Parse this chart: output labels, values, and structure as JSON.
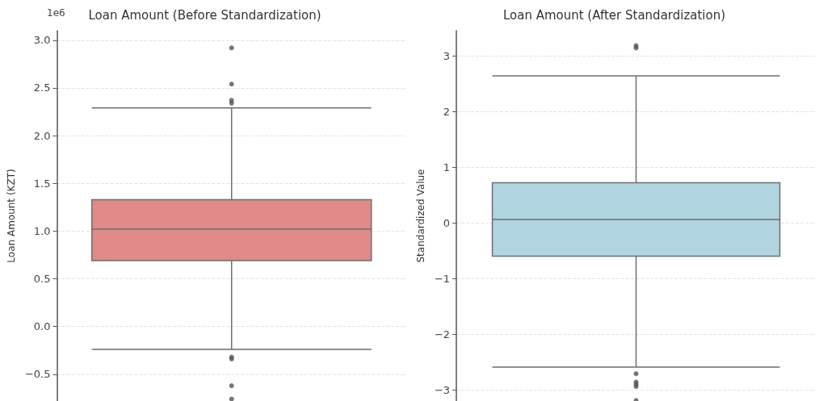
{
  "chart_data": [
    {
      "type": "box",
      "title": "Loan Amount (Before Standardization)",
      "ylabel": "Loan Amount (KZT)",
      "annotations": [
        "1e6"
      ],
      "categories": [
        null
      ],
      "color": "#e08a8a",
      "boxes": [
        {
          "low": -0.24,
          "q1": 0.69,
          "median": 1.02,
          "q3": 1.33,
          "high": 2.29,
          "outliers": [
            2.92,
            2.54,
            2.37,
            2.34,
            -0.32,
            -0.34,
            -0.62,
            -0.76
          ]
        }
      ],
      "ylim": [
        -0.78,
        3.1
      ],
      "yticks": [
        {
          "value": -0.5,
          "label": "−0.5"
        },
        {
          "value": 0,
          "label": "0.0"
        },
        {
          "value": 0.5,
          "label": "0.5"
        },
        {
          "value": 1,
          "label": "1.0"
        },
        {
          "value": 1.5,
          "label": "1.5"
        },
        {
          "value": 2,
          "label": "2.0"
        },
        {
          "value": 2.5,
          "label": "2.5"
        },
        {
          "value": 3,
          "label": "3.0"
        }
      ],
      "grid": "y",
      "tick_labels": "y"
    },
    {
      "type": "box",
      "title": "Loan Amount (After Standardization)",
      "ylabel": "Standardized Value",
      "categories": [
        null
      ],
      "color": "#b0d5e0",
      "boxes": [
        {
          "low": -2.59,
          "q1": -0.6,
          "median": 0.06,
          "q3": 0.72,
          "high": 2.64,
          "outliers": [
            3.18,
            3.14,
            -2.71,
            -2.86,
            -2.9,
            -2.94,
            -3.19
          ]
        }
      ],
      "ylim": [
        -3.2,
        3.45
      ],
      "yticks": [
        {
          "value": -3,
          "label": "−3"
        },
        {
          "value": -2,
          "label": "−2"
        },
        {
          "value": -1,
          "label": "−1"
        },
        0,
        1,
        2,
        3
      ],
      "grid": "y",
      "tick_labels": "y"
    }
  ]
}
